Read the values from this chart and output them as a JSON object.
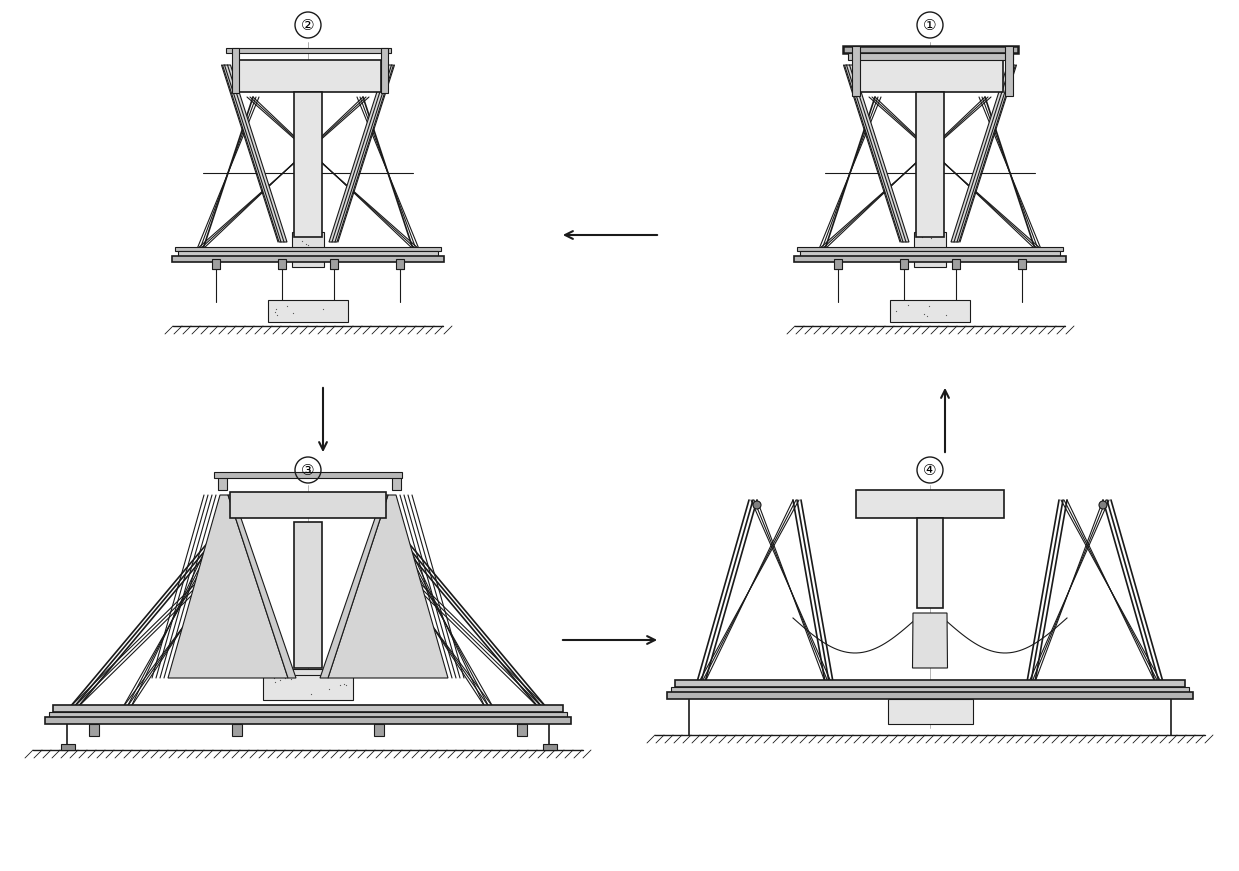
{
  "background_color": "#ffffff",
  "line_color": "#1a1a1a",
  "fig_width": 12.39,
  "fig_height": 8.71,
  "dpi": 100,
  "labels": {
    "tl": "②",
    "tr": "①",
    "bl": "③",
    "br": "④"
  }
}
